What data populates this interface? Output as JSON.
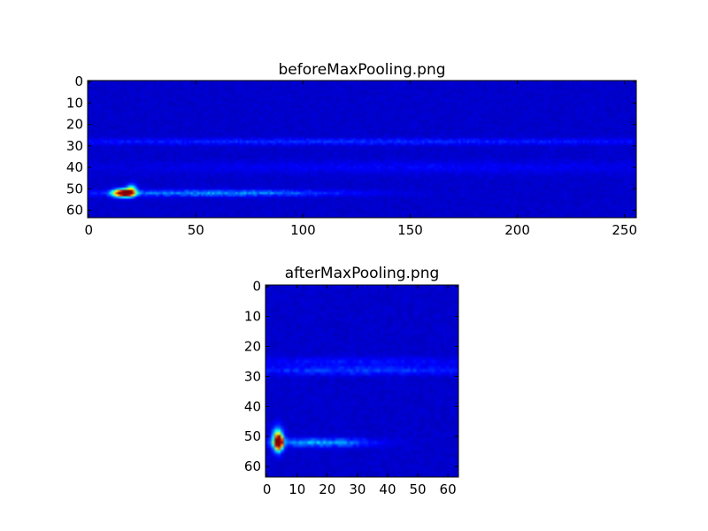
{
  "chart_data": [
    {
      "type": "heatmap",
      "title": "beforeMaxPooling.png",
      "colormap": "jet",
      "xlim": [
        -0.5,
        255.5
      ],
      "ylim": [
        63.5,
        -0.5
      ],
      "xticks": [
        "0",
        "50",
        "100",
        "150",
        "200",
        "250"
      ],
      "yticks": [
        "0",
        "10",
        "20",
        "30",
        "40",
        "50",
        "60"
      ],
      "grid": false,
      "features": [
        {
          "x": 18,
          "y": 52,
          "intensity": 1.0,
          "sx": 2.5,
          "sy": 1.2
        },
        {
          "x": 14,
          "y": 52,
          "intensity": 0.55,
          "sx": 2.5,
          "sy": 1.2
        },
        {
          "x": 20,
          "y": 50,
          "intensity": 0.35,
          "sx": 1.5,
          "sy": 1.5
        },
        {
          "x": 60,
          "y": 52,
          "intensity": 0.22,
          "sx": 40,
          "sy": 1.0
        },
        {
          "x": 120,
          "y": 28,
          "intensity": 0.1,
          "sx": 130,
          "sy": 1.0
        },
        {
          "x": 150,
          "y": 40,
          "intensity": 0.05,
          "sx": 100,
          "sy": 2
        }
      ]
    },
    {
      "type": "heatmap",
      "title": "afterMaxPooling.png",
      "colormap": "jet",
      "xlim": [
        -0.5,
        63.5
      ],
      "ylim": [
        63.5,
        -0.5
      ],
      "xticks": [
        "0",
        "10",
        "20",
        "30",
        "40",
        "50",
        "60"
      ],
      "yticks": [
        "0",
        "10",
        "20",
        "30",
        "40",
        "50",
        "60"
      ],
      "grid": false,
      "features": [
        {
          "x": 4,
          "y": 52,
          "intensity": 1.0,
          "sx": 0.8,
          "sy": 1.5
        },
        {
          "x": 3.5,
          "y": 51,
          "intensity": 0.6,
          "sx": 1.2,
          "sy": 2.5
        },
        {
          "x": 17,
          "y": 52,
          "intensity": 0.25,
          "sx": 12,
          "sy": 0.9
        },
        {
          "x": 30,
          "y": 28,
          "intensity": 0.12,
          "sx": 35,
          "sy": 1.0
        },
        {
          "x": 30,
          "y": 25,
          "intensity": 0.07,
          "sx": 35,
          "sy": 1.0
        }
      ]
    }
  ]
}
